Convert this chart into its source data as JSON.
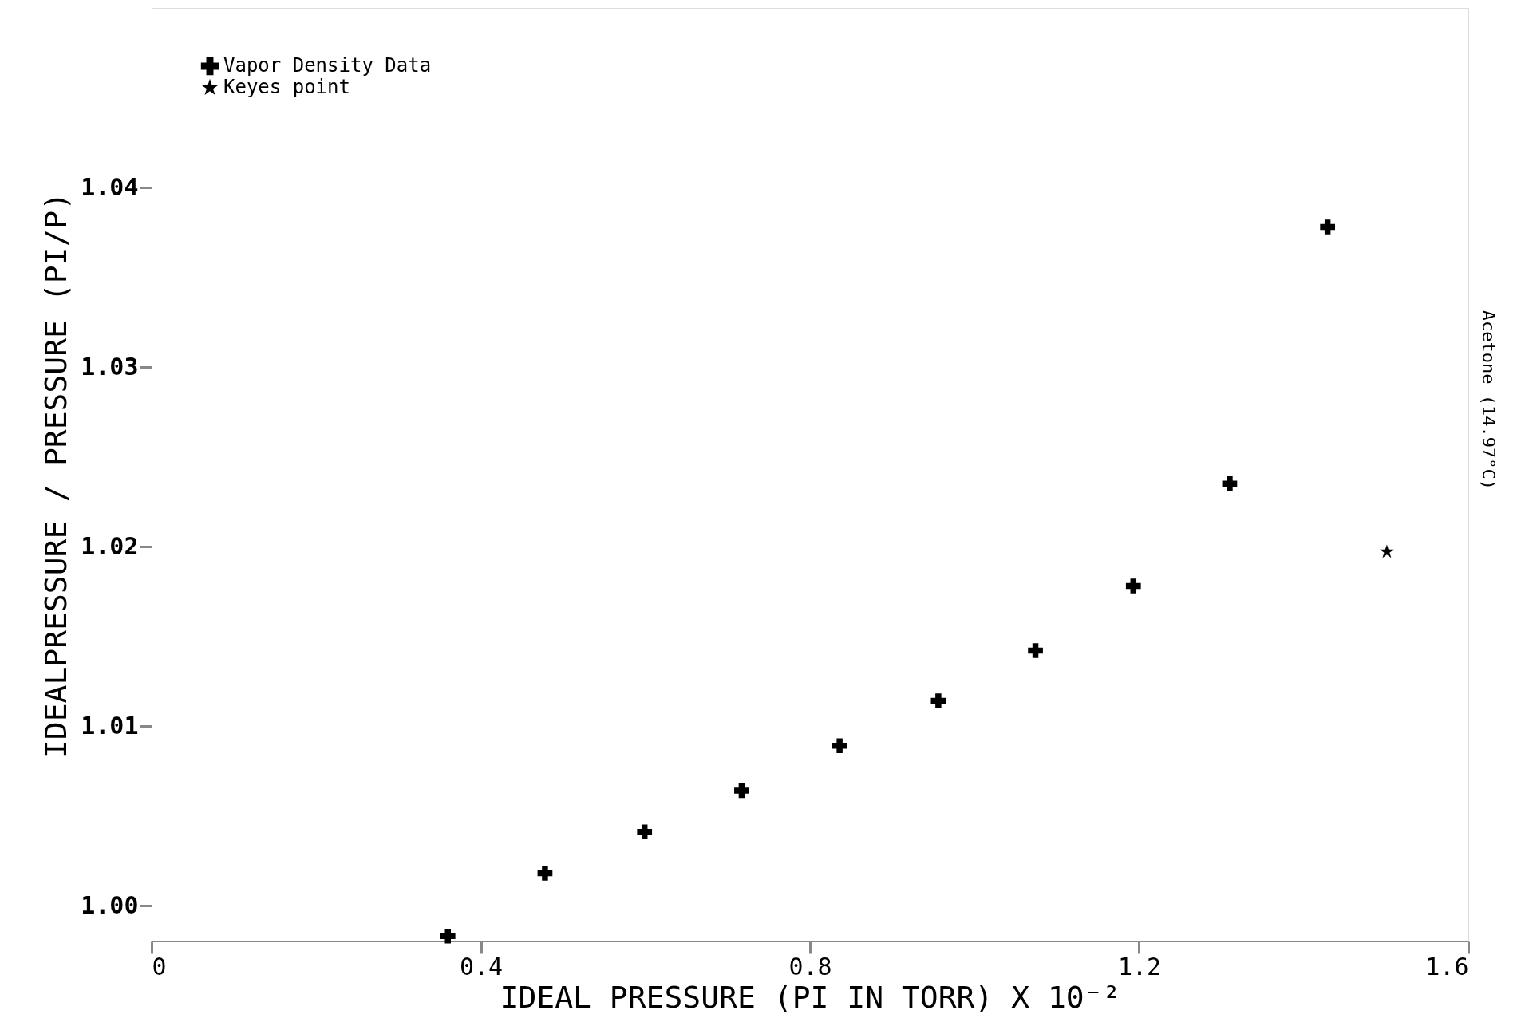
{
  "chart_data": {
    "type": "scatter",
    "xlabel": "IDEAL PRESSURE (PI IN TORR) X 10⁻²",
    "ylabel": "IDEALPRESSURE / PRESSURE (PI/P)",
    "xlim": [
      0,
      1.6
    ],
    "xticks": [
      0,
      0.4,
      0.8,
      1.2,
      1.6
    ],
    "ylim": [
      0.998,
      1.05
    ],
    "yticks": [
      {
        "value": 1.0,
        "label": "1.00"
      },
      1.01,
      1.02,
      1.03,
      1.04
    ],
    "grid": false,
    "legend": "top left",
    "series": [
      {
        "name": "Vapor Density Data",
        "color": "#000000",
        "marker": "cross",
        "x": [
          0.36,
          0.478,
          0.599,
          0.717,
          0.836,
          0.956,
          1.074,
          1.193,
          1.31,
          1.429
        ],
        "values": [
          0.9983,
          1.0018,
          1.0041,
          1.0064,
          1.0089,
          1.0114,
          1.0142,
          1.0178,
          1.0235,
          1.0378
        ]
      },
      {
        "name": "Keyes point",
        "color": "#000000",
        "marker": "star",
        "x": [
          1.501
        ],
        "values": [
          1.0197
        ]
      }
    ],
    "annotations": [
      "Acetone (14.97°C)"
    ]
  }
}
